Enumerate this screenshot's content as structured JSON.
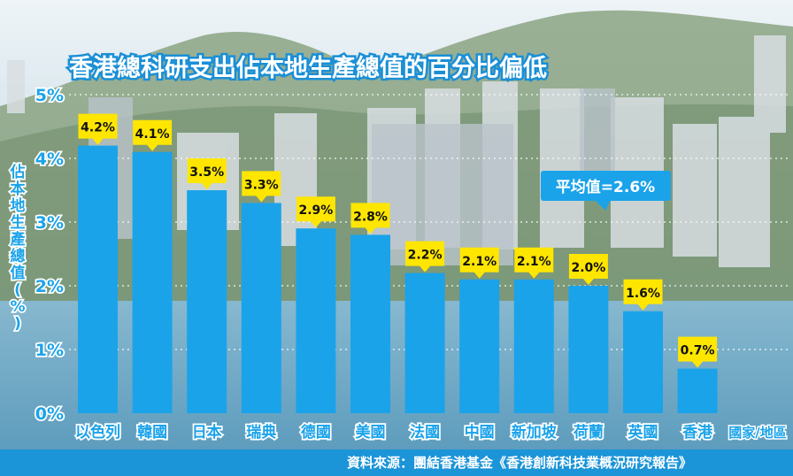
{
  "chart_data": {
    "type": "bar",
    "title": "香港總科研支出佔本地生產總值的百分比偏低",
    "ylabel": "佔本地生產總值(%)",
    "xlabel": "國家/地區",
    "ylim": [
      0,
      5
    ],
    "y_ticks": [
      "0%",
      "1%",
      "2%",
      "3%",
      "4%",
      "5%"
    ],
    "categories": [
      "以色列",
      "韓國",
      "日本",
      "瑞典",
      "德國",
      "美國",
      "法國",
      "中國",
      "新加坡",
      "荷蘭",
      "英國",
      "香港"
    ],
    "values": [
      4.2,
      4.1,
      3.5,
      3.3,
      2.9,
      2.8,
      2.2,
      2.1,
      2.1,
      2.0,
      1.6,
      0.7
    ],
    "value_labels": [
      "4.2%",
      "4.1%",
      "3.5%",
      "3.3%",
      "2.9%",
      "2.8%",
      "2.2%",
      "2.1%",
      "2.1%",
      "2.0%",
      "1.6%",
      "0.7%"
    ],
    "average_label": "平均值=2.6%",
    "source": "資料來源：團結香港基金《香港創新科技業概況研究報告》",
    "colors": {
      "bar": "#1ba3ea",
      "label_bg": "#ffe600",
      "axis_text": "#1ba3ea",
      "title_text": "#ffffff",
      "title_stroke": "#1a8fd6"
    }
  }
}
